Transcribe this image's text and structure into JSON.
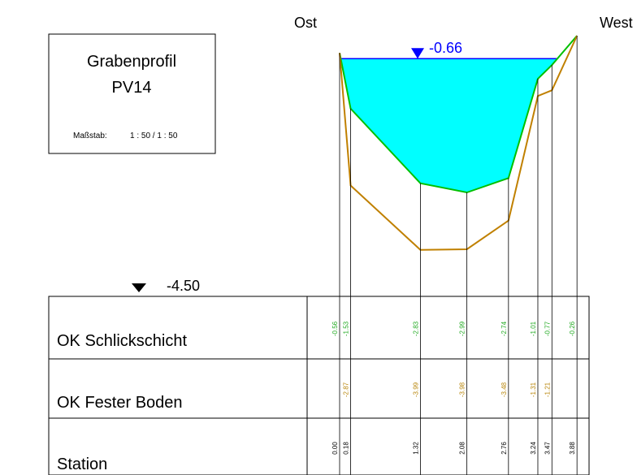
{
  "title_box": {
    "line1": "Grabenprofil",
    "line2": "PV14",
    "scale_label": "Maßstab:",
    "scale_value": "1 : 50 / 1 : 50"
  },
  "directions": {
    "left": "Ost",
    "right": "West"
  },
  "water_level": {
    "label": "-0.66",
    "value": -0.66
  },
  "reference_level": {
    "label": "-4.50",
    "value": -4.5
  },
  "rows": {
    "schlick": "OK Schlickschicht",
    "boden": "OK Fester Boden",
    "station": "Station"
  },
  "colors": {
    "water_fill": "#00ffff",
    "water_line": "#0000ff",
    "schlick_line": "#00c000",
    "boden_line": "#c08000",
    "schlick_text": "#22aa22",
    "boden_text": "#b8860b"
  },
  "stations": [
    {
      "station": "0.00",
      "schlick": "-0.56",
      "boden": ""
    },
    {
      "station": "0.18",
      "schlick": "-1.53",
      "boden": "-2.87"
    },
    {
      "station": "1.32",
      "schlick": "-2.83",
      "boden": "-3.99"
    },
    {
      "station": "2.08",
      "schlick": "-2.99",
      "boden": "-3.98"
    },
    {
      "station": "2.76",
      "schlick": "-2.74",
      "boden": "-3.48"
    },
    {
      "station": "3.24",
      "schlick": "-1.01",
      "boden": "-1.31"
    },
    {
      "station": "3.47",
      "schlick": "-0.77",
      "boden": "-1.21"
    },
    {
      "station": "3.88",
      "schlick": "-0.26",
      "boden": ""
    }
  ]
}
